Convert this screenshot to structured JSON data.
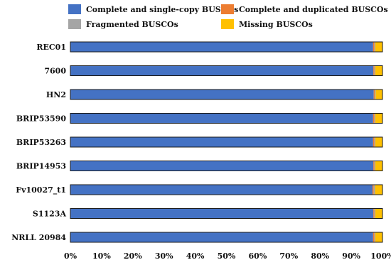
{
  "chart_data": {
    "type": "bar",
    "orientation": "horizontal",
    "stacked": true,
    "categories": [
      "REC01",
      "7600",
      "HN2",
      "BRIP53590",
      "BRIP53263",
      "BRIP14953",
      "Fv10027_t1",
      "S1123A",
      "NRLL 20984"
    ],
    "series": [
      {
        "name": "Complete and single-copy BUSCOs",
        "color": "#4472C4",
        "values": [
          97.0,
          97.1,
          97.2,
          97.0,
          97.0,
          97.1,
          96.8,
          97.1,
          97.0
        ]
      },
      {
        "name": "Complete and duplicated BUSCOs",
        "color": "#ED7D31",
        "values": [
          0.4,
          0.3,
          0.3,
          0.4,
          0.4,
          0.3,
          0.4,
          0.3,
          0.4
        ]
      },
      {
        "name": "Fragmented BUSCOs",
        "color": "#A5A5A5",
        "values": [
          0.3,
          0.3,
          0.3,
          0.3,
          0.3,
          0.3,
          0.4,
          0.3,
          0.3
        ]
      },
      {
        "name": "Missing BUSCOs",
        "color": "#FFC000",
        "values": [
          2.3,
          2.3,
          2.2,
          2.3,
          2.3,
          2.3,
          2.4,
          2.3,
          2.3
        ]
      }
    ],
    "xlim": [
      0,
      100
    ],
    "xticks": [
      "0%",
      "10%",
      "20%",
      "30%",
      "40%",
      "50%",
      "60%",
      "70%",
      "80%",
      "90%",
      "100%"
    ],
    "legend": "top",
    "grid": false
  }
}
